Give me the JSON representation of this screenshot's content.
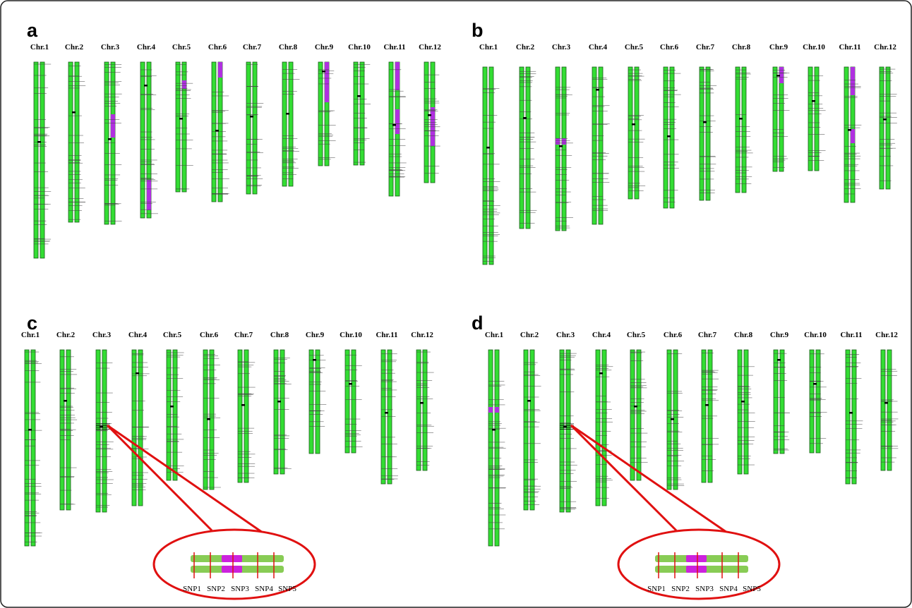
{
  "panels": [
    {
      "label": "a",
      "chromosomes": [
        "Chr.1",
        "Chr.2",
        "Chr.3",
        "Chr.4",
        "Chr.5",
        "Chr.6",
        "Chr.7",
        "Chr.8",
        "Chr.9",
        "Chr.10",
        "Chr.11",
        "Chr.12"
      ]
    },
    {
      "label": "b",
      "chromosomes": [
        "Chr.1",
        "Chr.2",
        "Chr.3",
        "Chr.4",
        "Chr.5",
        "Chr.6",
        "Chr.7",
        "Chr.8",
        "Chr.9",
        "Chr.10",
        "Chr.11",
        "Chr.12"
      ]
    },
    {
      "label": "c",
      "chromosomes": [
        "Chr.1",
        "Chr.2",
        "Chr.3",
        "Chr.4",
        "Chr.5",
        "Chr.6",
        "Chr.7",
        "Chr.8",
        "Chr.9",
        "Chr.10",
        "Chr.11",
        "Chr.12"
      ],
      "callout": [
        "SNP1",
        "SNP2",
        "SNP3",
        "SNP4",
        "SNP5"
      ]
    },
    {
      "label": "d",
      "chromosomes": [
        "Chr.1",
        "Chr.2",
        "Chr.3",
        "Chr.4",
        "Chr.5",
        "Chr.6",
        "Chr.7",
        "Chr.8",
        "Chr.9",
        "Chr.10",
        "Chr.11",
        "Chr.12"
      ],
      "callout": [
        "SNP1",
        "SNP2",
        "SNP3",
        "SNP4",
        "SNP5"
      ]
    }
  ]
}
